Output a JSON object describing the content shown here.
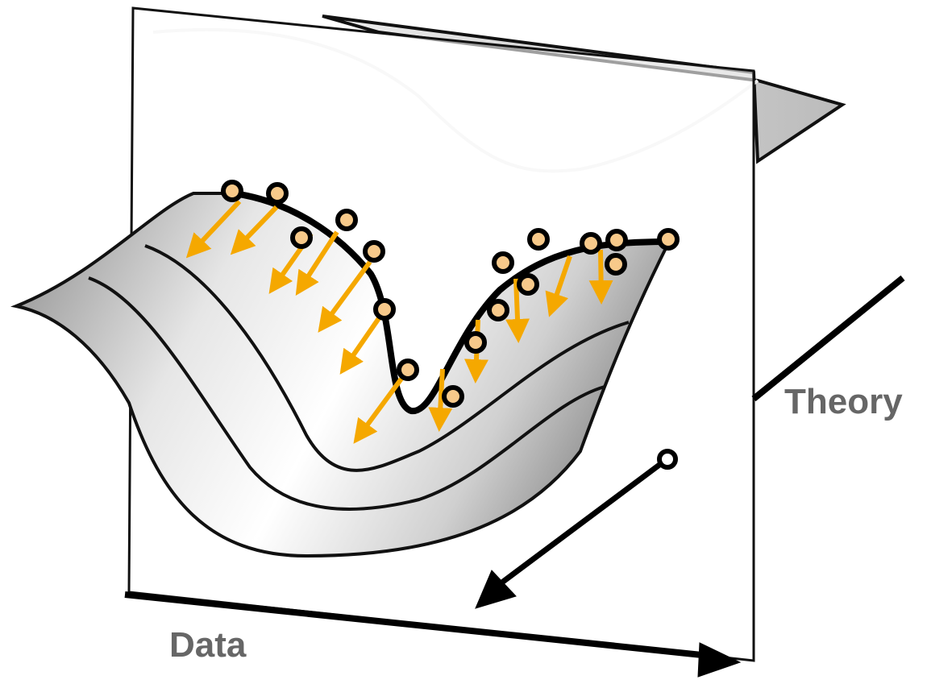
{
  "axes": {
    "theory": "Theory",
    "data": "Data"
  }
}
